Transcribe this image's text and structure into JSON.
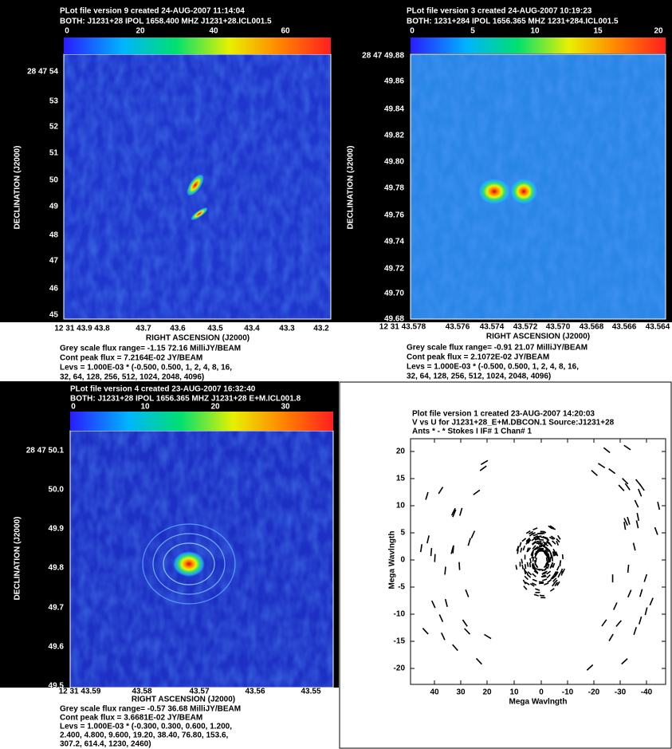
{
  "panels": [
    {
      "title_lines": [
        "PLot file version 9  created 24-AUG-2007 11:14:04",
        "BOTH: J1231+28  IPOL  1658.400 MHZ  J1231+28.ICL001.5"
      ],
      "colorbar_ticks": [
        "0",
        "20",
        "40",
        "60"
      ],
      "y_axis_label": "DECLINATION (J2000)",
      "y_ticks": [
        "28 47 54",
        "53",
        "52",
        "51",
        "50",
        "49",
        "48",
        "47",
        "46",
        "45"
      ],
      "x_ticks": [
        "12 31 43.9",
        "43.8",
        "43.7",
        "43.6",
        "43.5",
        "43.4",
        "43.3",
        "43.2"
      ],
      "x_axis_label": "RIGHT ASCENSION (J2000)",
      "notes": [
        "Grey scale flux range= -1.15 72.16 MilliJY/BEAM",
        "Cont peak flux =  7.2164E-02 JY/BEAM",
        "Levs = 1.000E-03 * (-0.500, 0.500, 1, 2, 4, 8, 16,",
        "32, 64, 128, 256, 512, 1024, 2048, 4096)"
      ]
    },
    {
      "title_lines": [
        "PLot file version 3  created 24-AUG-2007 10:19:23",
        "BOTH: 1231+284  IPOL  1656.365 MHZ  1231+284.ICL001.5"
      ],
      "colorbar_ticks": [
        "0",
        "5",
        "10",
        "15",
        "20"
      ],
      "y_axis_label": "DECLINATION (J2000)",
      "y_ticks": [
        "28 47 49.88",
        "49.86",
        "49.84",
        "49.82",
        "49.80",
        "49.78",
        "49.76",
        "49.74",
        "49.72",
        "49.70",
        "49.68"
      ],
      "x_ticks": [
        "12 31 43.578",
        "43.576",
        "43.574",
        "43.572",
        "43.570",
        "43.568",
        "43.566",
        "43.564"
      ],
      "x_axis_label": "RIGHT ASCENSION (J2000)",
      "notes": [
        "Grey scale flux range= -0.91 21.07 MilliJY/BEAM",
        "Cont peak flux =  2.1072E-02 JY/BEAM",
        "Levs = 1.000E-03 * (-0.500, 0.500, 1, 2, 4, 8, 16,",
        "32, 64, 128, 256, 512, 1024, 2048, 4096)"
      ]
    },
    {
      "title_lines": [
        "PLot file version 4  created 23-AUG-2007 16:32:40",
        "BOTH: J1231+28  IPOL  1656.365 MHZ  J1231+28 E+M.ICL001.8"
      ],
      "colorbar_ticks": [
        "0",
        "10",
        "20",
        "30"
      ],
      "y_axis_label": "DECLINATION (J2000)",
      "y_ticks": [
        "28 47 50.1",
        "50.0",
        "49.9",
        "49.8",
        "49.7",
        "49.6",
        "49.5"
      ],
      "x_ticks": [
        "12 31 43.59",
        "43.58",
        "43.57",
        "43.56",
        "43.55"
      ],
      "x_axis_label": "RIGHT ASCENSION (J2000)",
      "notes": [
        "Grey scale flux range= -0.57 36.68 MilliJY/BEAM",
        "Cont peak flux =  3.6681E-02 JY/BEAM",
        "Levs = 1.000E-03 * (-0.300, 0.300, 0.600, 1.200,",
        "2.400, 4.800, 9.600, 19.20, 38.40, 76.80, 153.6,",
        "307.2, 614.4, 1230, 2460)"
      ]
    },
    {
      "title_lines": [
        "Plot file version 1  created 23-AUG-2007 14:20:03",
        "V vs U for J1231+28_E+M.DBCON.1  Source:J1231+28",
        "Ants * - *    Stokes I   IF# 1   Chan# 1"
      ],
      "y_axis_label": "Mega Wavlngth",
      "y_ticks": [
        "20",
        "15",
        "10",
        "5",
        "0",
        "-5",
        "-10",
        "-15",
        "-20"
      ],
      "x_ticks": [
        "40",
        "30",
        "20",
        "10",
        "0",
        "-10",
        "-20",
        "-30",
        "-40"
      ],
      "x_axis_label": "Mega Wavlngth"
    }
  ]
}
